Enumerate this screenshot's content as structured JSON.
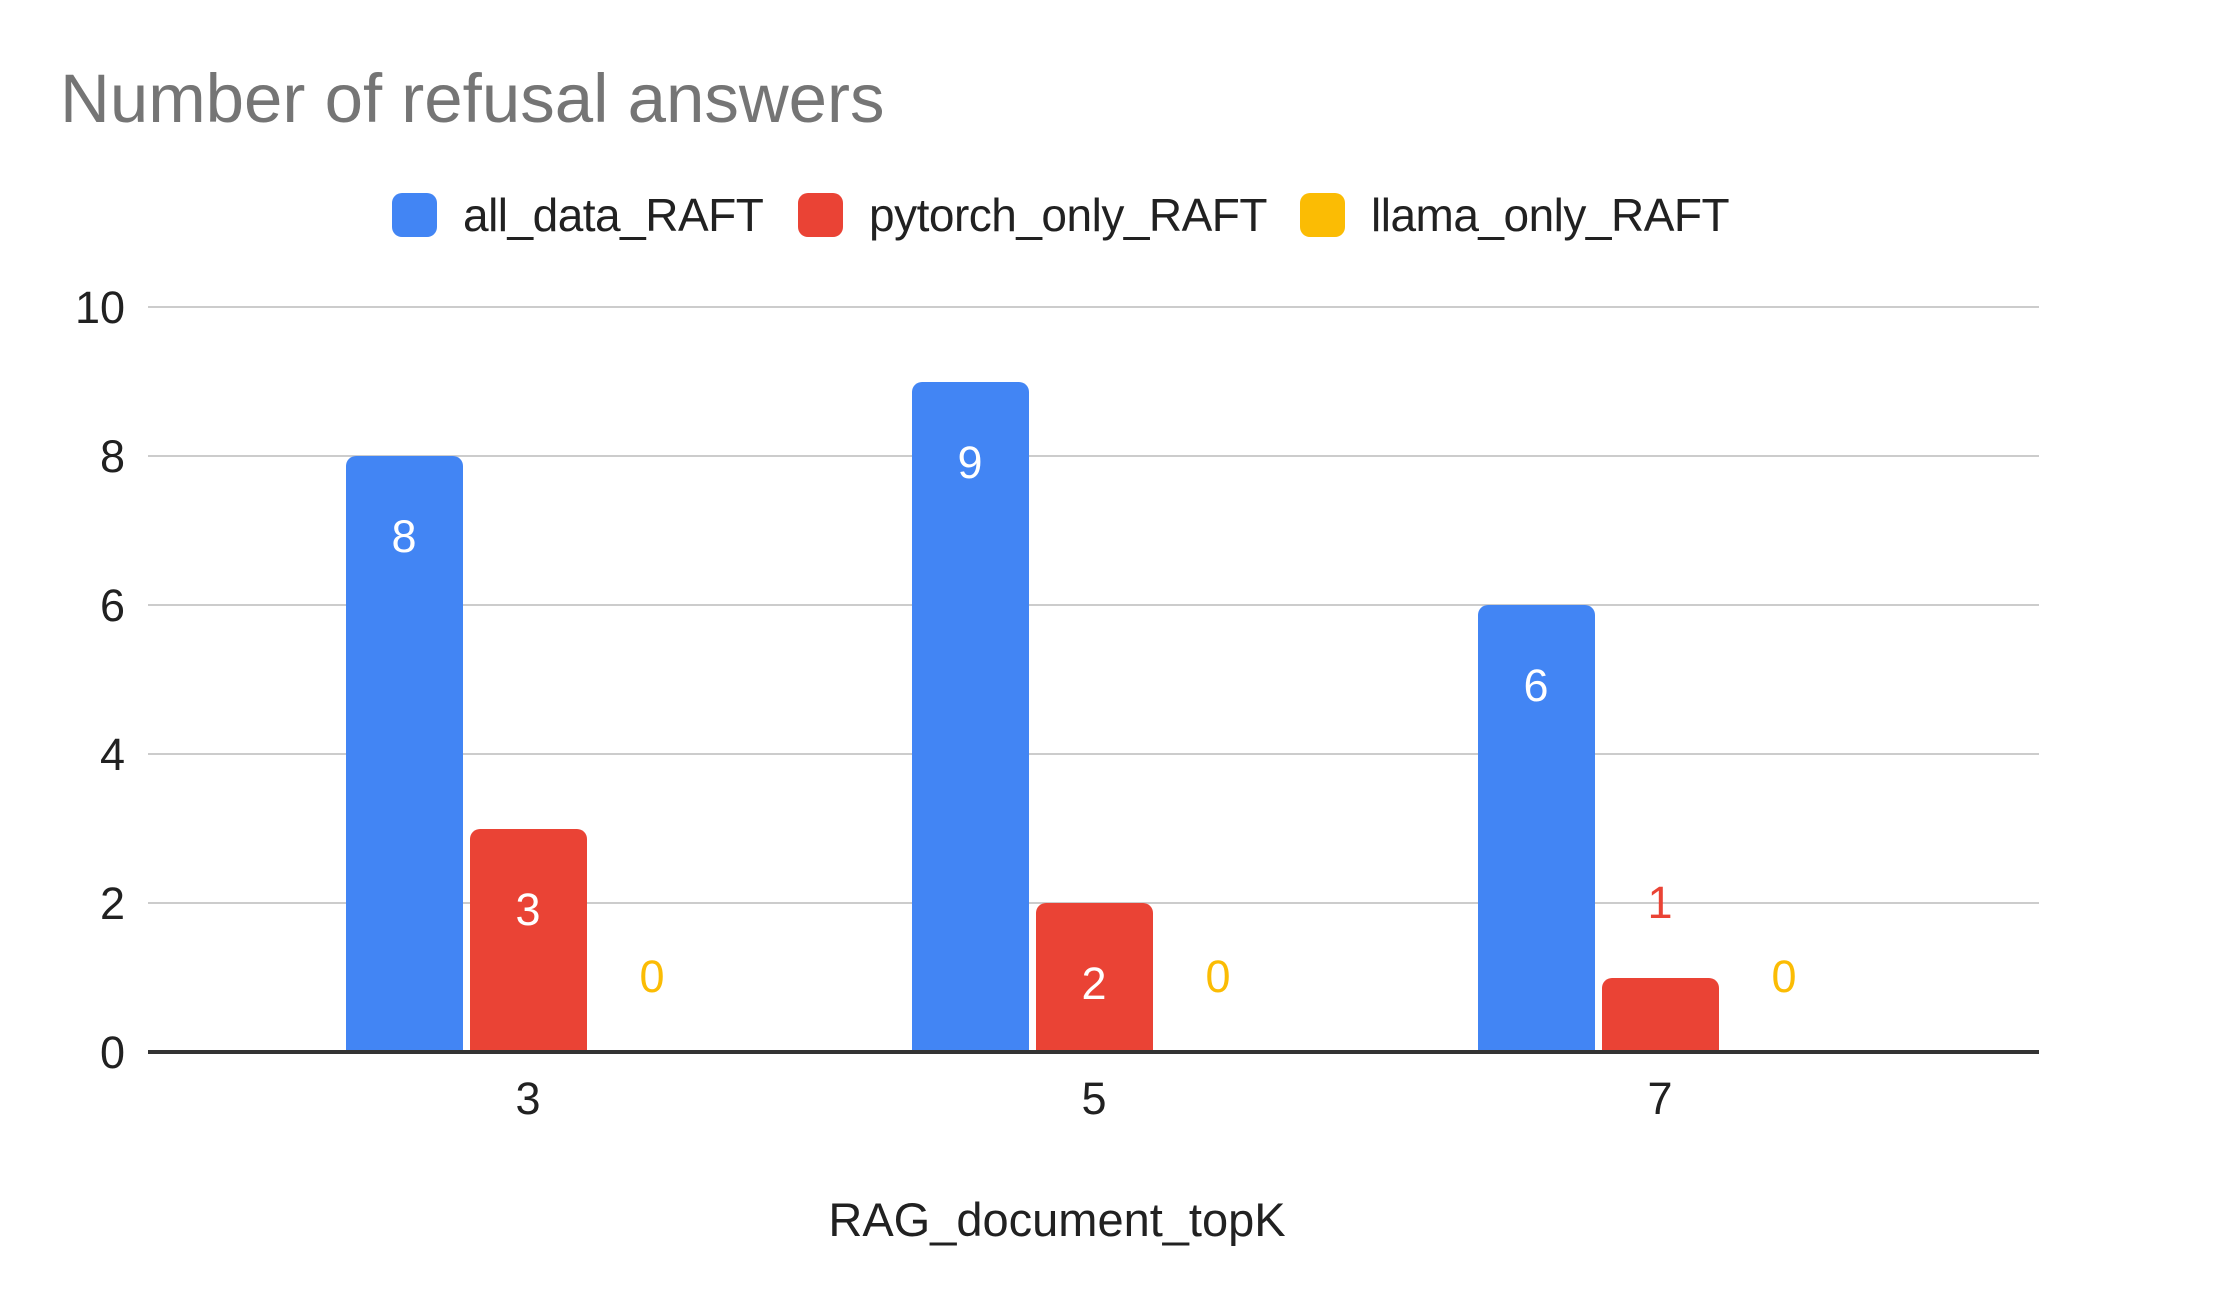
{
  "chart": {
    "title": "Number of refusal answers",
    "x_axis_title": "RAG_document_topK"
  },
  "chart_data": {
    "type": "bar",
    "title": "Number of refusal answers",
    "xlabel": "RAG_document_topK",
    "ylabel": "",
    "categories": [
      "3",
      "5",
      "7"
    ],
    "series": [
      {
        "name": "all_data_RAFT",
        "color": "#4285F4",
        "values": [
          8,
          9,
          6
        ]
      },
      {
        "name": "pytorch_only_RAFT",
        "color": "#EA4335",
        "values": [
          3,
          2,
          1
        ]
      },
      {
        "name": "llama_only_RAFT",
        "color": "#FBBC04",
        "values": [
          0,
          0,
          0
        ]
      }
    ],
    "ylim": [
      0,
      10
    ],
    "yticks": [
      0,
      2,
      4,
      6,
      8,
      10
    ],
    "grid": true,
    "legend_position": "top",
    "data_labels": true
  }
}
